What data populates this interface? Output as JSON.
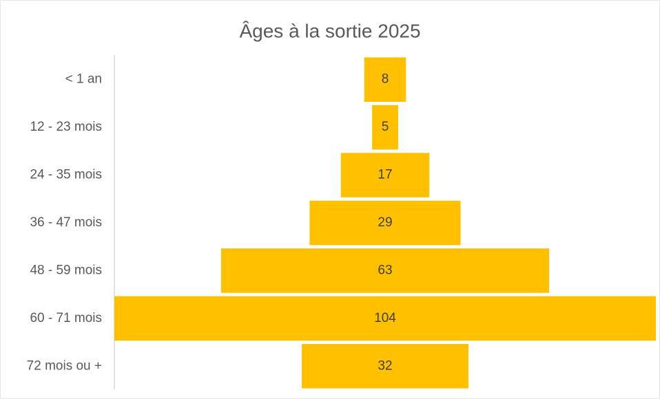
{
  "chart_data": {
    "type": "funnel",
    "title": "Âges à la sortie 2025",
    "categories": [
      "< 1 an",
      "12 - 23 mois",
      "24 - 35 mois",
      "36 - 47 mois",
      "48 - 59 mois",
      "60 - 71 mois",
      "72 mois ou +"
    ],
    "values": [
      8,
      5,
      17,
      29,
      63,
      104,
      32
    ],
    "color": "#ffc000"
  }
}
